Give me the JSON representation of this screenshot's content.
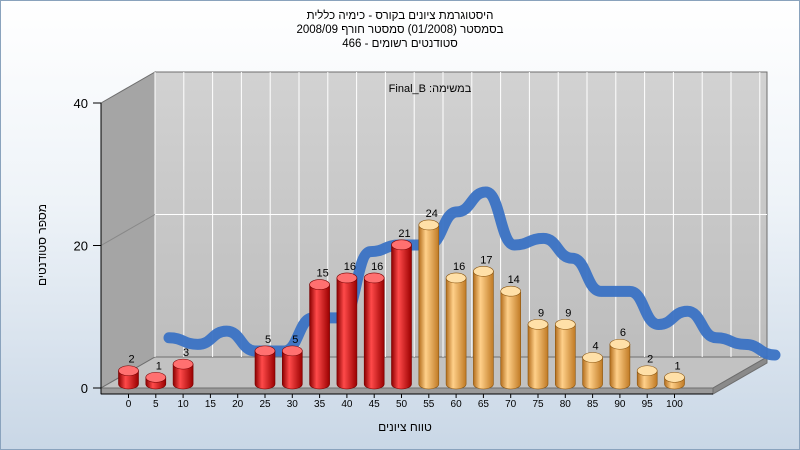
{
  "header": {
    "line1": "היסטוגרמת ציונים בקורס - כימיה כללית",
    "line2": "בסמסטר (01/2008) סמסטר חורף 2008/09",
    "line3": "466 - סטודנטים רשומים"
  },
  "chart_data": {
    "type": "bar",
    "annotation": "Final_B :במשימה",
    "xlabel": "טווח ציונים",
    "ylabel": "מספר סטודנטים",
    "ylim": [
      0,
      40
    ],
    "y_ticks": [
      "0",
      "20",
      "40"
    ],
    "x_ticks": [
      "0",
      "5",
      "10",
      "15",
      "20",
      "25",
      "30",
      "35",
      "40",
      "45",
      "50",
      "55",
      "60",
      "65",
      "70",
      "75",
      "80",
      "85",
      "90",
      "95",
      "100"
    ],
    "values": [
      2,
      1,
      3,
      0,
      0,
      5,
      5,
      15,
      16,
      16,
      21,
      24,
      16,
      17,
      14,
      9,
      9,
      4,
      6,
      2,
      1
    ],
    "value_labels": [
      "2",
      "1",
      "3",
      "",
      "",
      "5",
      "5",
      "15",
      "16",
      "16",
      "21",
      "24",
      "16",
      "17",
      "14",
      "9",
      "9",
      "4",
      "6",
      "2",
      "1"
    ],
    "colors": {
      "fail": "#d01818",
      "pass": "#e8a448",
      "ribbon": "#3a72c4",
      "wall": "#a6a6a6"
    }
  }
}
